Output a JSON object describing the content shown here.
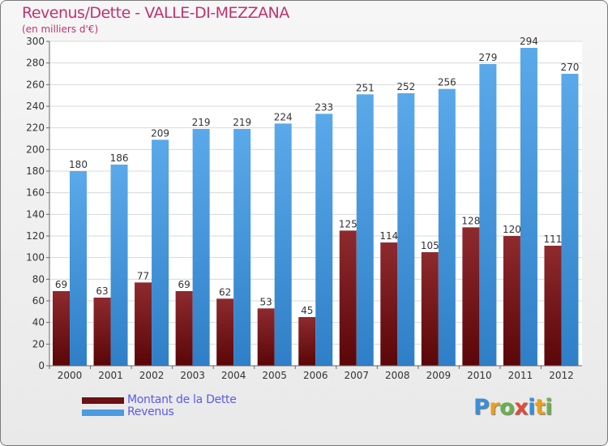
{
  "header": {
    "title": "Revenus/Dette - VALLE-DI-MEZZANA",
    "subtitle": "(en milliers d'€)"
  },
  "chart_data": {
    "type": "bar",
    "title": "Revenus/Dette - VALLE-DI-MEZZANA",
    "ylabel": "(en milliers d'€)",
    "xlabel": "",
    "ylim": [
      0,
      300
    ],
    "ytick_step": 20,
    "grid": true,
    "legend_position": "bottom-left",
    "categories": [
      "2000",
      "2001",
      "2002",
      "2003",
      "2004",
      "2005",
      "2006",
      "2007",
      "2008",
      "2009",
      "2010",
      "2011",
      "2012"
    ],
    "series": [
      {
        "name": "Montant de la Dette",
        "color": "#7b1a1e",
        "values": [
          69,
          63,
          77,
          69,
          62,
          53,
          45,
          125,
          114,
          105,
          128,
          120,
          111
        ]
      },
      {
        "name": "Revenus",
        "color": "#4a9be0",
        "values": [
          180,
          186,
          209,
          219,
          219,
          224,
          233,
          251,
          252,
          256,
          279,
          294,
          270
        ]
      }
    ]
  },
  "legend": [
    {
      "label": "Montant de la Dette",
      "color": "#6b1014"
    },
    {
      "label": "Revenus",
      "color": "#4a9be0"
    }
  ],
  "logo": {
    "letters": [
      "P",
      "r",
      "o",
      "x",
      "i",
      "t",
      "i"
    ],
    "colors": [
      "#3a8fd6",
      "#e8a020",
      "#6ab04c",
      "#e04a3a",
      "#3a8fd6",
      "#e8a020",
      "#6ab04c"
    ]
  }
}
